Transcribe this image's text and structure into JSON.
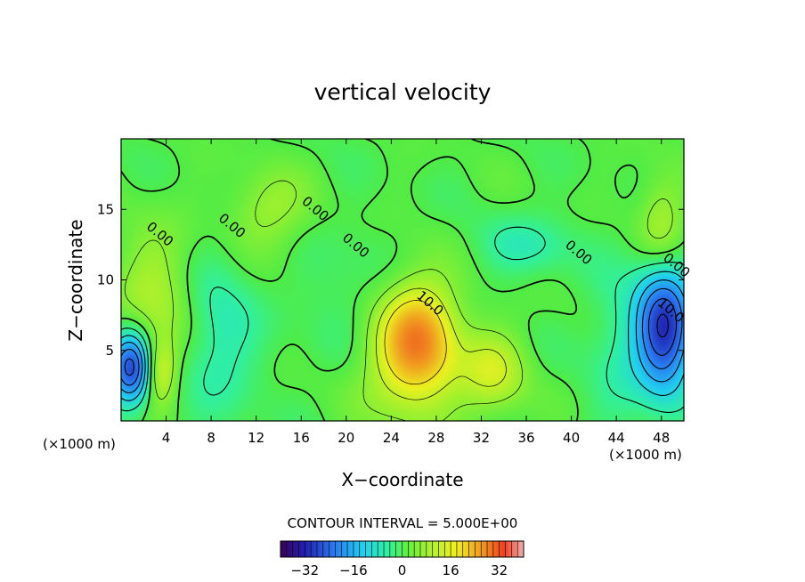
{
  "chart_data": {
    "type": "heatmap",
    "title": "vertical velocity",
    "xlabel": "X−coordinate",
    "ylabel": "Z−coordinate",
    "x_unit_left": "(×1000 m)",
    "x_unit_right": "(×1000 m)",
    "xlim": [
      0,
      50
    ],
    "ylim": [
      0,
      20
    ],
    "x_ticks": [
      4,
      8,
      12,
      16,
      20,
      24,
      28,
      32,
      36,
      40,
      44,
      48
    ],
    "y_ticks": [
      5,
      10,
      15
    ],
    "contour_interval_text": "CONTOUR INTERVAL = 5.000E+00",
    "contour_labels": [
      {
        "text": "0.00",
        "x": 3.2,
        "z": 13.0
      },
      {
        "text": "0.00",
        "x": 9.6,
        "z": 13.6
      },
      {
        "text": "0.00",
        "x": 17.0,
        "z": 14.8
      },
      {
        "text": "0.00",
        "x": 20.6,
        "z": 12.2
      },
      {
        "text": "0.00",
        "x": 40.4,
        "z": 11.7
      },
      {
        "text": "0.00",
        "x": 49.1,
        "z": 10.8
      },
      {
        "text": "10.0",
        "x": 27.2,
        "z": 8.1
      },
      {
        "text": "10.0",
        "x": 48.6,
        "z": 7.6
      }
    ],
    "field_features": [
      {
        "x": 0.8,
        "z": 3.8,
        "value": -28,
        "sx": 1.3,
        "sz": 1.8
      },
      {
        "x": 48.2,
        "z": 6.7,
        "value": -30,
        "sx": 1.8,
        "sz": 3.2
      },
      {
        "x": 26.3,
        "z": 6.4,
        "value": 17,
        "sx": 2.3,
        "sz": 2.7
      },
      {
        "x": 25.5,
        "z": 4.0,
        "value": 11,
        "sx": 3.5,
        "sz": 3.0
      },
      {
        "x": 33.0,
        "z": 3.5,
        "value": 10,
        "sx": 2.0,
        "sz": 2.0
      },
      {
        "x": 3.4,
        "z": 3.6,
        "value": 12,
        "sx": 1.0,
        "sz": 1.6
      },
      {
        "x": 3.0,
        "z": 9.0,
        "value": 8,
        "sx": 2.5,
        "sz": 3.5
      },
      {
        "x": 13.0,
        "z": 15.0,
        "value": 7,
        "sx": 2.5,
        "sz": 2.0
      },
      {
        "x": 8.5,
        "z": 6.0,
        "value": -7,
        "sx": 2.5,
        "sz": 4.0
      },
      {
        "x": 36.0,
        "z": 12.5,
        "value": -6,
        "sx": 3.0,
        "sz": 1.5
      },
      {
        "x": 44.0,
        "z": 5.0,
        "value": -5,
        "sx": 2.0,
        "sz": 4.0
      },
      {
        "x": 48.0,
        "z": 14.0,
        "value": 9,
        "sx": 1.5,
        "sz": 2.5
      },
      {
        "x": 20.0,
        "z": 8.0,
        "value": -3,
        "sx": 3.0,
        "sz": 4.0
      }
    ],
    "colorbar": {
      "range": [
        -40,
        40
      ],
      "ticks": [
        -32,
        -16,
        0,
        16,
        32
      ]
    }
  }
}
